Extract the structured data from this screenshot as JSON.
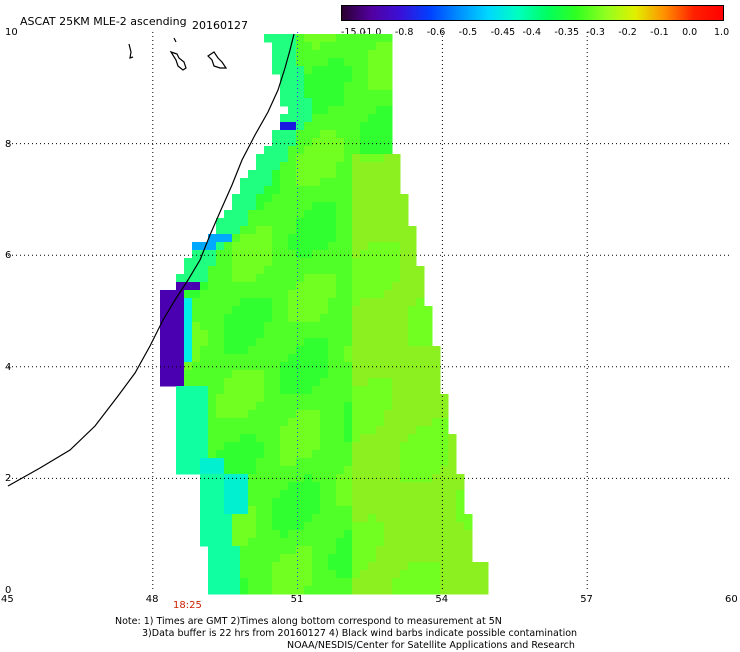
{
  "title": "ASCAT 25KM MLE-2 ascending",
  "date": "20160127",
  "colorbar": {
    "labels": [
      "-15.0",
      "-1.0",
      "-0.8",
      "-0.6",
      "-0.5",
      "-0.45",
      "-0.4",
      "-0.35",
      "-0.3",
      "-0.2",
      "-0.1",
      "0.0",
      "1.0"
    ],
    "colors": [
      "#2a0030",
      "#5200a0",
      "#3a10d8",
      "#0040ff",
      "#0090ff",
      "#00d8ff",
      "#00ffc0",
      "#00ff60",
      "#30ff20",
      "#90ff20",
      "#e0f000",
      "#ff9000",
      "#ff2000",
      "#ff0000"
    ]
  },
  "map": {
    "x_ticks": [
      "45",
      "48",
      "51",
      "54",
      "57",
      "60"
    ],
    "y_ticks": [
      "0",
      "2",
      "4",
      "6",
      "8",
      "10"
    ],
    "lon_range": [
      45,
      60
    ],
    "lat_range": [
      0,
      10
    ],
    "time_label": "18:25",
    "grid": "dotted"
  },
  "note": {
    "line1": "Note: 1) Times are GMT 2)Times along bottom correspond to measurement at 5N",
    "line2": "3)Data buffer is 22 hrs from 20160127 4) Black wind barbs indicate possible contamination",
    "line3": "NOAA/NESDIS/Center for Satellite Applications and Research"
  }
}
